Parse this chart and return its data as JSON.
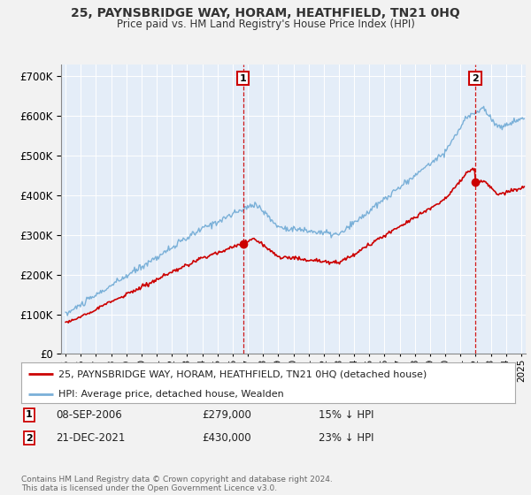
{
  "title1": "25, PAYNSBRIDGE WAY, HORAM, HEATHFIELD, TN21 0HQ",
  "title2": "Price paid vs. HM Land Registry's House Price Index (HPI)",
  "bg_color": "#f0f0f0",
  "plot_bg_color": "#e8eef8",
  "grid_color": "#ffffff",
  "legend_line1": "25, PAYNSBRIDGE WAY, HORAM, HEATHFIELD, TN21 0HQ (detached house)",
  "legend_line2": "HPI: Average price, detached house, Wealden",
  "hpi_color": "#7ab0d8",
  "price_color": "#cc0000",
  "marker1_x": 2006.69,
  "marker1_y": 279000,
  "marker1_label": "1",
  "marker1_date": "08-SEP-2006",
  "marker1_price": "£279,000",
  "marker1_note": "15% ↓ HPI",
  "marker2_x": 2021.97,
  "marker2_y": 430000,
  "marker2_label": "2",
  "marker2_date": "21-DEC-2021",
  "marker2_price": "£430,000",
  "marker2_note": "23% ↓ HPI",
  "footer": "Contains HM Land Registry data © Crown copyright and database right 2024.\nThis data is licensed under the Open Government Licence v3.0.",
  "ylim": [
    0,
    730000
  ],
  "xlim_start": 1994.7,
  "xlim_end": 2025.3,
  "yticks": [
    0,
    100000,
    200000,
    300000,
    400000,
    500000,
    600000,
    700000
  ]
}
